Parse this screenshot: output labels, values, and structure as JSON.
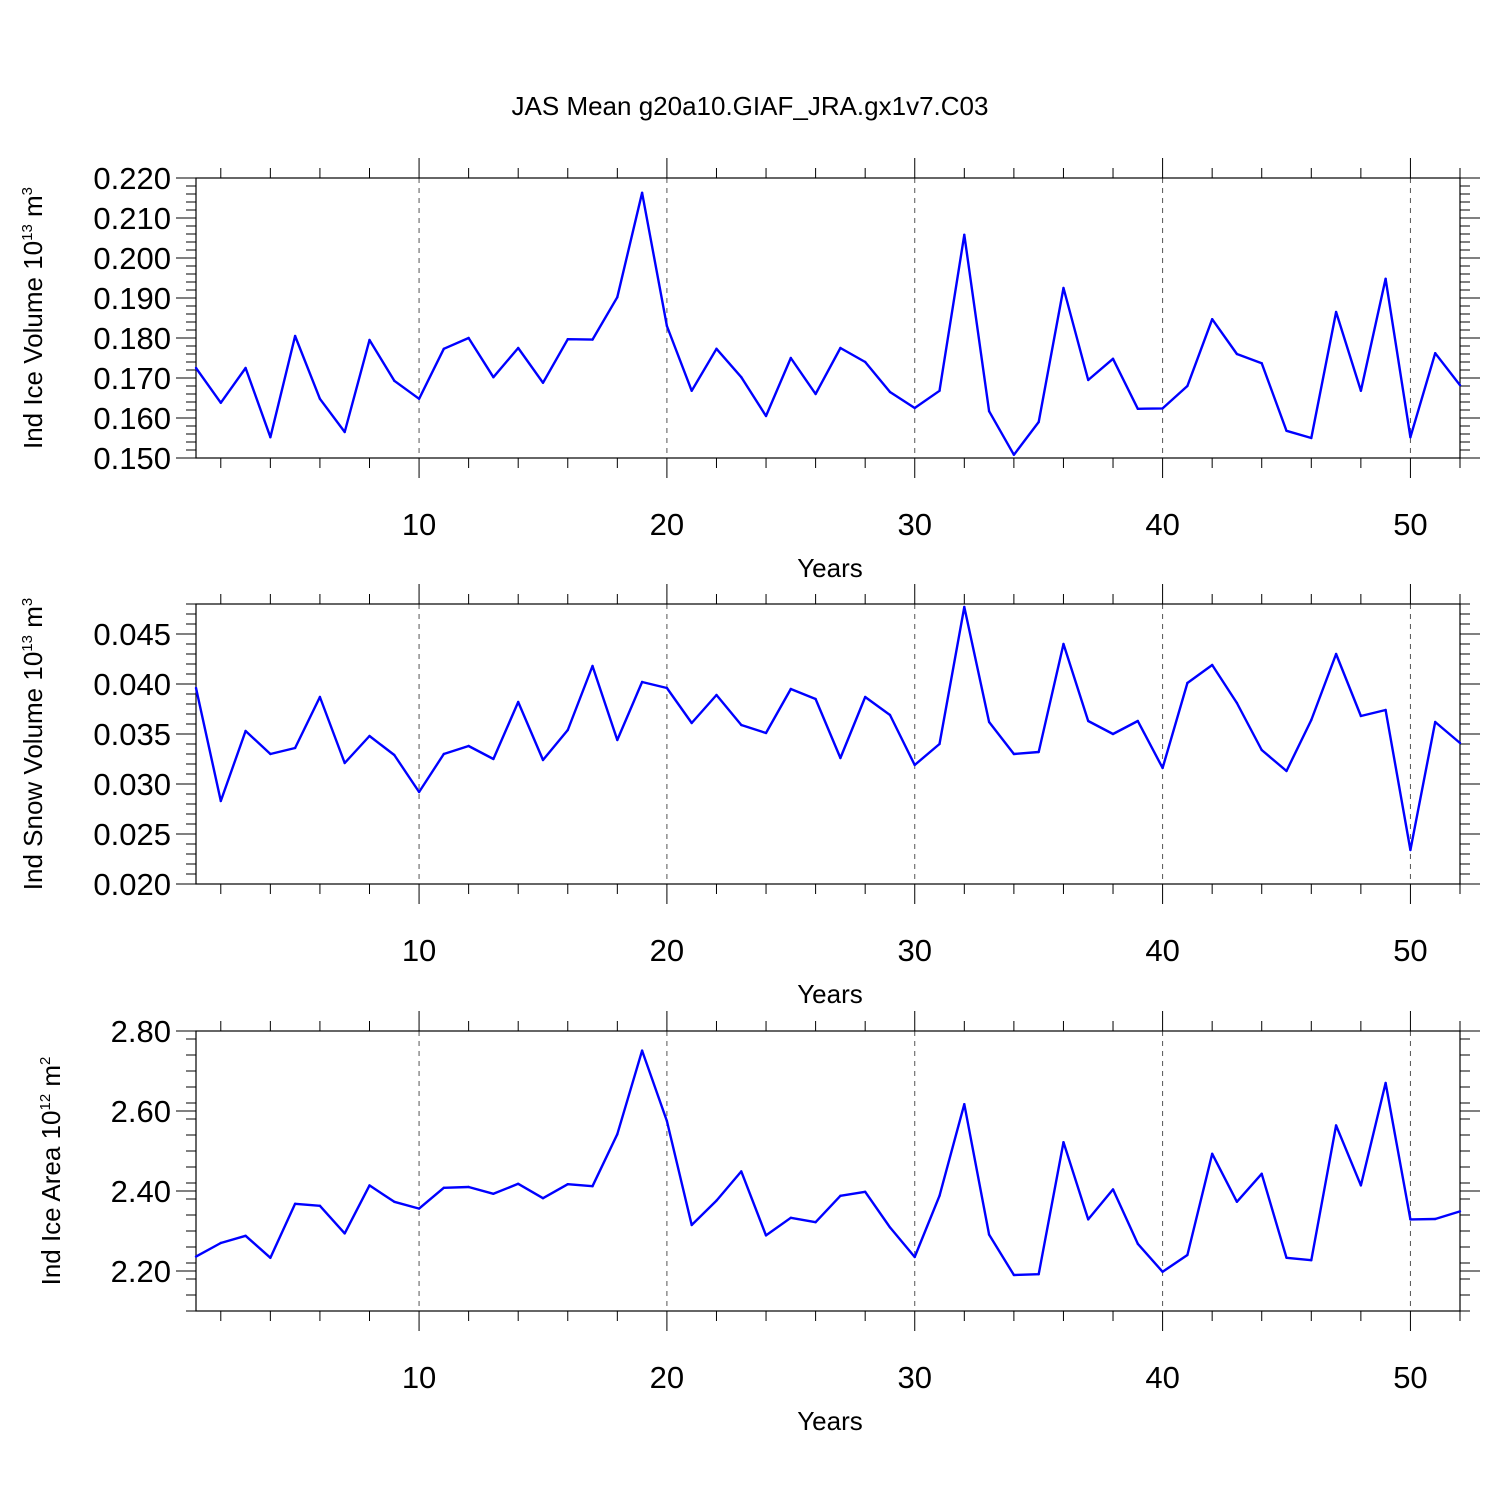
{
  "title": "JAS Mean g20a10.GIAF_JRA.gx1v7.C03",
  "line_color": "#0000ff",
  "chart_data": [
    {
      "type": "line",
      "ylabel_prefix": "Ind Ice Volume 10",
      "ylabel_exp": "13",
      "ylabel_suffix": " m",
      "ylabel_unit_exp": "3",
      "xlabel": "Years",
      "xlim": [
        1,
        52
      ],
      "ylim": [
        0.15,
        0.22
      ],
      "yticks": [
        0.15,
        0.16,
        0.17,
        0.18,
        0.19,
        0.2,
        0.21,
        0.22
      ],
      "yticklabels": [
        "0.150",
        "0.160",
        "0.170",
        "0.180",
        "0.190",
        "0.200",
        "0.210",
        "0.220"
      ],
      "yminor_step": 0.002,
      "xticks": [
        10,
        20,
        30,
        40,
        50
      ],
      "xticklabels": [
        "10",
        "20",
        "30",
        "40",
        "50"
      ],
      "grid_x": true,
      "x": [
        1,
        2,
        3,
        4,
        5,
        6,
        7,
        8,
        9,
        10,
        11,
        12,
        13,
        14,
        15,
        16,
        17,
        18,
        19,
        20,
        21,
        22,
        23,
        24,
        25,
        26,
        27,
        28,
        29,
        30,
        31,
        32,
        33,
        34,
        35,
        36,
        37,
        38,
        39,
        40,
        41,
        42,
        43,
        44,
        45,
        46,
        47,
        48,
        49,
        50,
        51,
        52
      ],
      "values": [
        0.1725,
        0.1638,
        0.1725,
        0.1552,
        0.1805,
        0.1648,
        0.1565,
        0.1795,
        0.1693,
        0.1648,
        0.1773,
        0.18,
        0.1702,
        0.1775,
        0.1688,
        0.1797,
        0.1796,
        0.1902,
        0.2163,
        0.183,
        0.1668,
        0.1773,
        0.1702,
        0.1605,
        0.175,
        0.166,
        0.1775,
        0.174,
        0.1665,
        0.1625,
        0.1668,
        0.2058,
        0.1617,
        0.1508,
        0.159,
        0.1925,
        0.1695,
        0.1748,
        0.1623,
        0.1624,
        0.168,
        0.1847,
        0.176,
        0.1737,
        0.1568,
        0.155,
        0.1865,
        0.1668,
        0.1948,
        0.1552,
        0.1762,
        0.1682
      ]
    },
    {
      "type": "line",
      "ylabel_prefix": "Ind Snow Volume 10",
      "ylabel_exp": "13",
      "ylabel_suffix": " m",
      "ylabel_unit_exp": "3",
      "xlabel": "Years",
      "xlim": [
        1,
        52
      ],
      "ylim": [
        0.02,
        0.048
      ],
      "yticks": [
        0.02,
        0.025,
        0.03,
        0.035,
        0.04,
        0.045
      ],
      "yticklabels": [
        "0.020",
        "0.025",
        "0.030",
        "0.035",
        "0.040",
        "0.045"
      ],
      "yminor_step": 0.001,
      "xticks": [
        10,
        20,
        30,
        40,
        50
      ],
      "xticklabels": [
        "10",
        "20",
        "30",
        "40",
        "50"
      ],
      "grid_x": true,
      "x": [
        1,
        2,
        3,
        4,
        5,
        6,
        7,
        8,
        9,
        10,
        11,
        12,
        13,
        14,
        15,
        16,
        17,
        18,
        19,
        20,
        21,
        22,
        23,
        24,
        25,
        26,
        27,
        28,
        29,
        30,
        31,
        32,
        33,
        34,
        35,
        36,
        37,
        38,
        39,
        40,
        41,
        42,
        43,
        44,
        45,
        46,
        47,
        48,
        49,
        50,
        51,
        52
      ],
      "values": [
        0.0396,
        0.0283,
        0.0353,
        0.033,
        0.0336,
        0.0387,
        0.0321,
        0.0348,
        0.0329,
        0.0292,
        0.033,
        0.0338,
        0.0325,
        0.0382,
        0.0324,
        0.0354,
        0.0418,
        0.0344,
        0.0402,
        0.0396,
        0.0361,
        0.0389,
        0.0359,
        0.0351,
        0.0395,
        0.0385,
        0.0326,
        0.0387,
        0.0369,
        0.0319,
        0.034,
        0.0477,
        0.0362,
        0.033,
        0.0332,
        0.044,
        0.0363,
        0.035,
        0.0363,
        0.0316,
        0.0401,
        0.0419,
        0.0381,
        0.0334,
        0.0313,
        0.0364,
        0.043,
        0.0368,
        0.0374,
        0.0234,
        0.0362,
        0.0341
      ]
    },
    {
      "type": "line",
      "ylabel_prefix": "Ind Ice Area 10",
      "ylabel_exp": "12",
      "ylabel_suffix": " m",
      "ylabel_unit_exp": "2",
      "xlabel": "Years",
      "xlim": [
        1,
        52
      ],
      "ylim": [
        2.1,
        2.8
      ],
      "yticks": [
        2.2,
        2.4,
        2.6,
        2.8
      ],
      "yticklabels": [
        "2.20",
        "2.40",
        "2.60",
        "2.80"
      ],
      "yminor_step": 0.04,
      "xticks": [
        10,
        20,
        30,
        40,
        50
      ],
      "xticklabels": [
        "10",
        "20",
        "30",
        "40",
        "50"
      ],
      "grid_x": true,
      "x": [
        1,
        2,
        3,
        4,
        5,
        6,
        7,
        8,
        9,
        10,
        11,
        12,
        13,
        14,
        15,
        16,
        17,
        18,
        19,
        20,
        21,
        22,
        23,
        24,
        25,
        26,
        27,
        28,
        29,
        30,
        31,
        32,
        33,
        34,
        35,
        36,
        37,
        38,
        39,
        40,
        41,
        42,
        43,
        44,
        45,
        46,
        47,
        48,
        49,
        50,
        51,
        52
      ],
      "values": [
        2.236,
        2.27,
        2.288,
        2.233,
        2.368,
        2.363,
        2.294,
        2.414,
        2.373,
        2.356,
        2.408,
        2.41,
        2.393,
        2.418,
        2.382,
        2.417,
        2.412,
        2.542,
        2.751,
        2.575,
        2.315,
        2.376,
        2.449,
        2.289,
        2.333,
        2.322,
        2.388,
        2.398,
        2.309,
        2.235,
        2.388,
        2.617,
        2.291,
        2.19,
        2.192,
        2.522,
        2.329,
        2.404,
        2.268,
        2.198,
        2.24,
        2.493,
        2.373,
        2.443,
        2.233,
        2.227,
        2.564,
        2.414,
        2.67,
        2.329,
        2.33,
        2.349
      ]
    }
  ]
}
